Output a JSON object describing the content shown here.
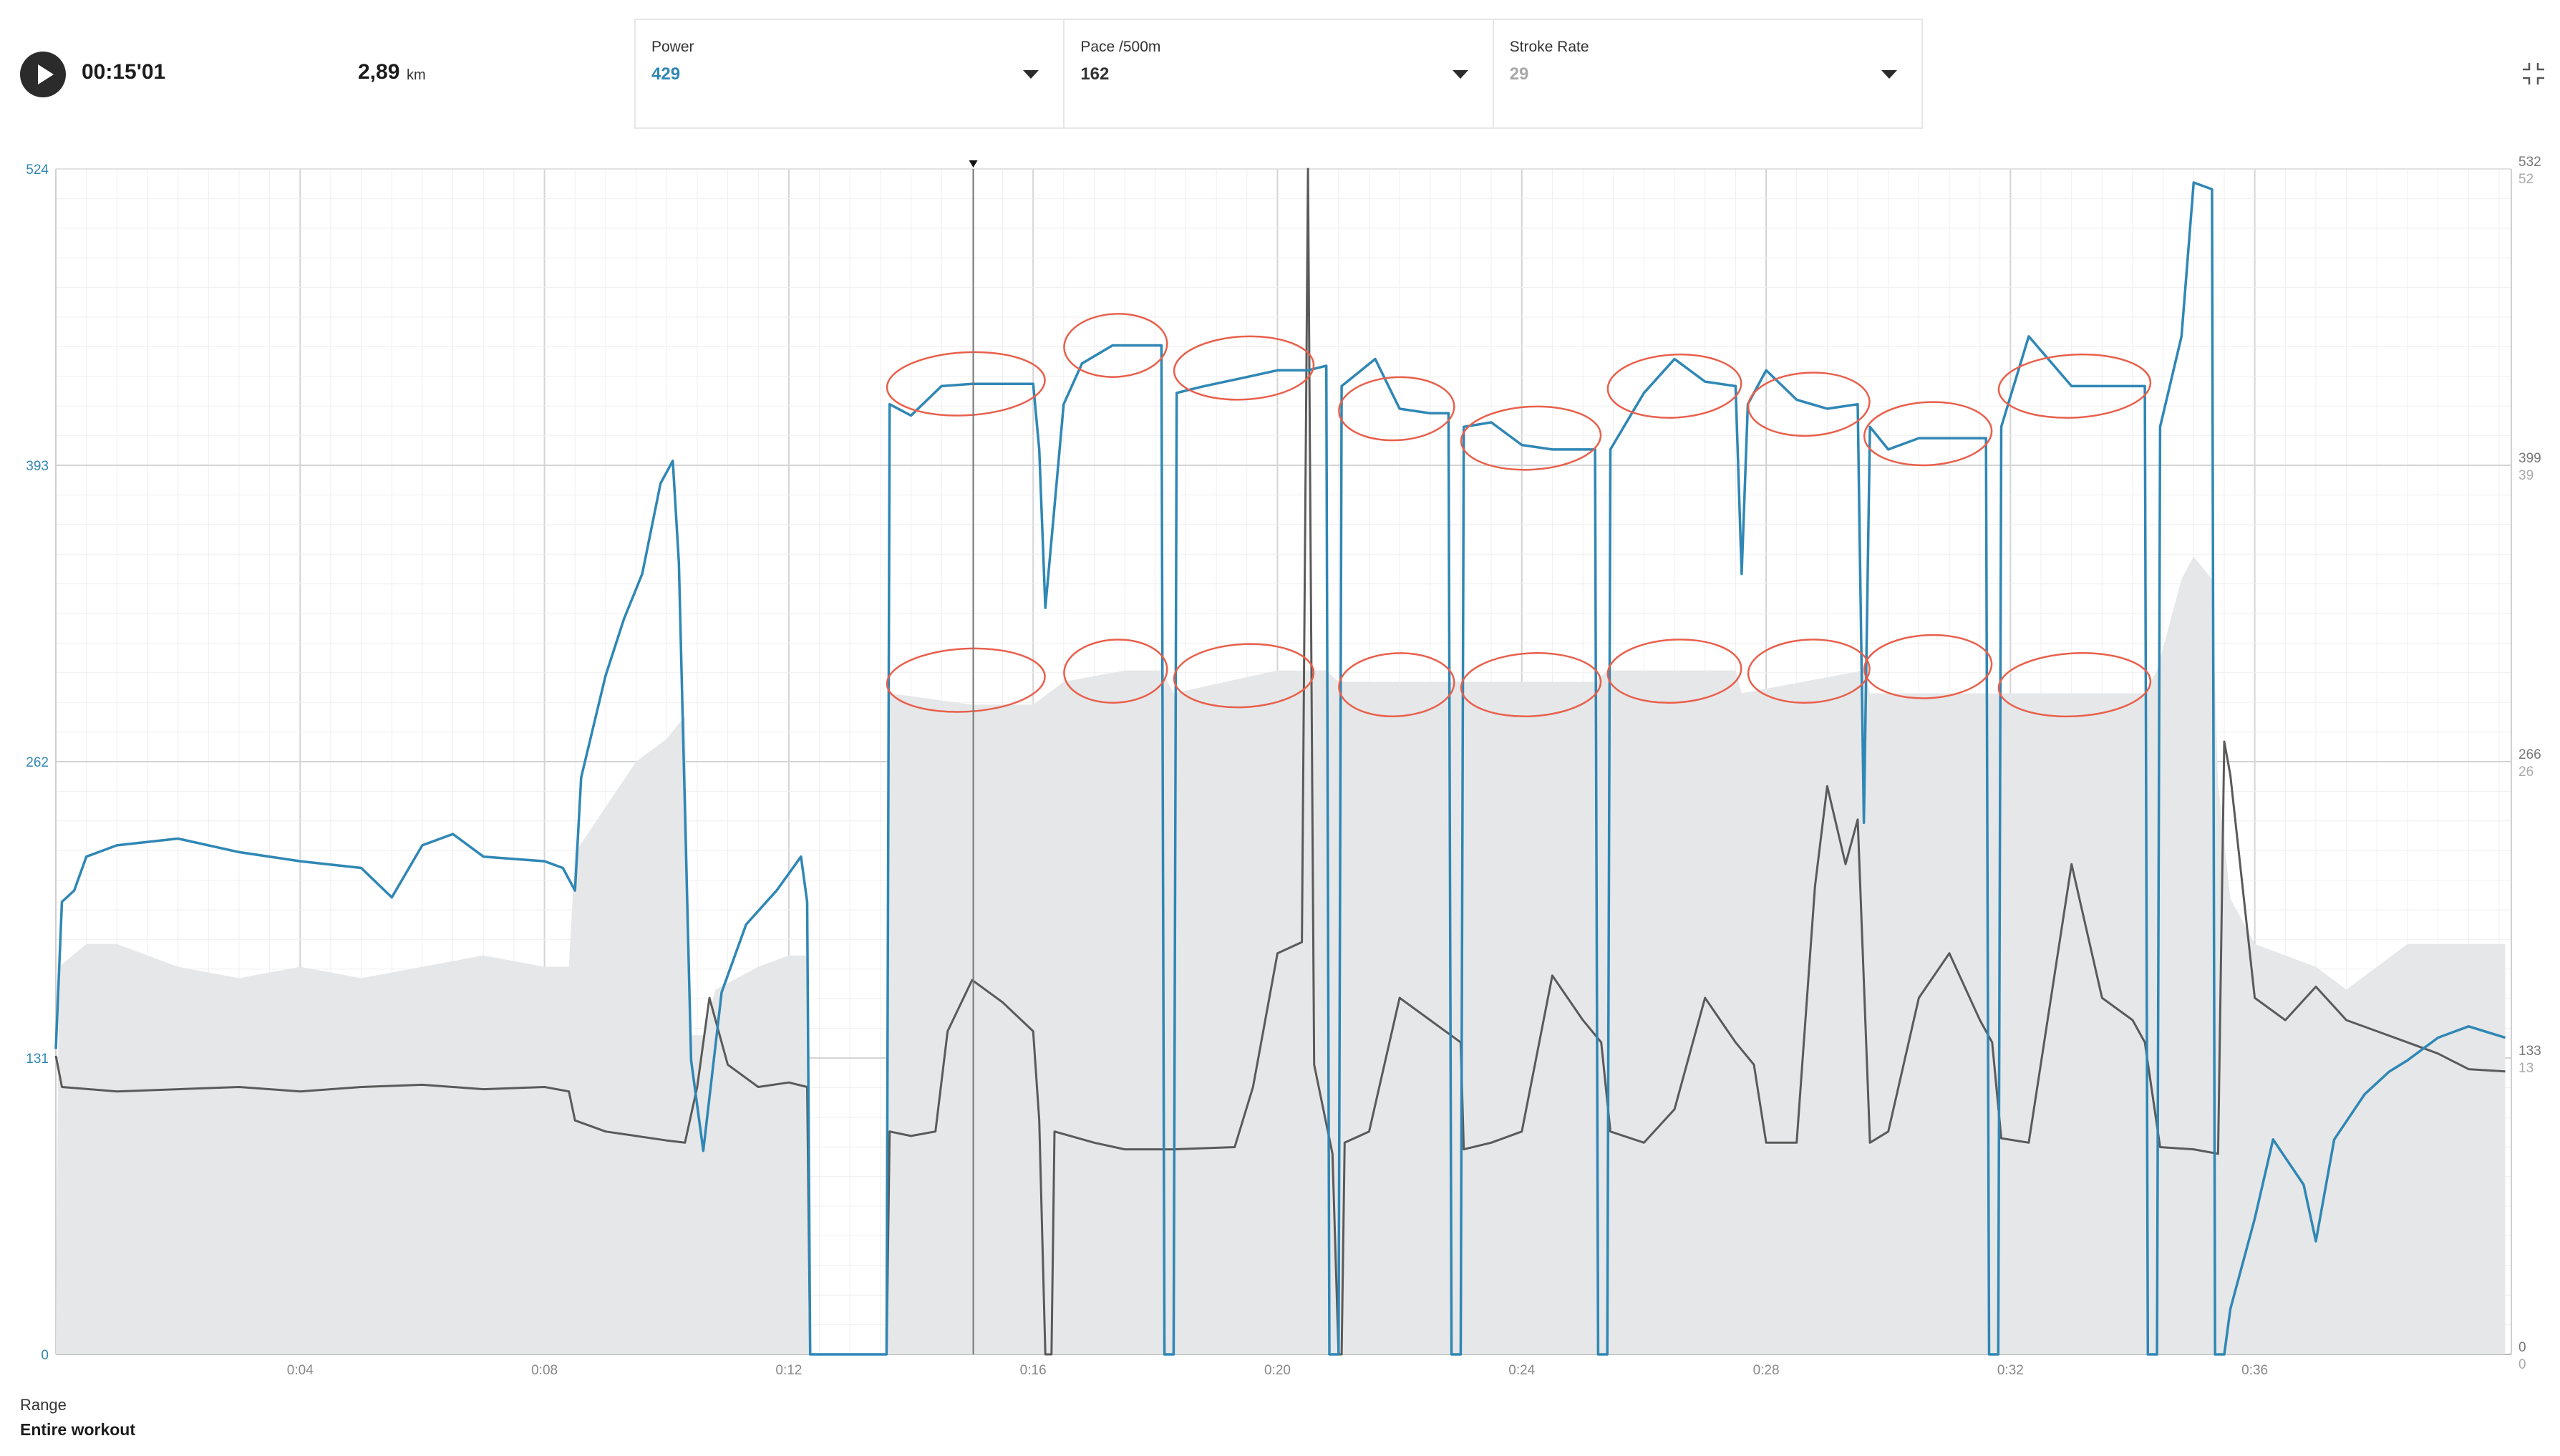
{
  "header": {
    "elapsed_time": "00:15'01",
    "distance_value": "2,89",
    "distance_unit": "km"
  },
  "selectors": [
    {
      "label": "Power",
      "value": "429",
      "color": "#2f87b5"
    },
    {
      "label": "Pace /500m",
      "value": "162",
      "color": "#333333"
    },
    {
      "label": "Stroke Rate",
      "value": "29",
      "color": "#a8a8a8"
    }
  ],
  "range": {
    "label": "Range",
    "value": "Entire workout"
  },
  "chart_data": {
    "type": "line",
    "x_unit": "minutes",
    "x_range": [
      0,
      40.2
    ],
    "x_ticks": [
      {
        "t": 4,
        "label": "0:04"
      },
      {
        "t": 8,
        "label": "0:08"
      },
      {
        "t": 12,
        "label": "0:12"
      },
      {
        "t": 16,
        "label": "0:16"
      },
      {
        "t": 20,
        "label": "0:20"
      },
      {
        "t": 24,
        "label": "0:24"
      },
      {
        "t": 28,
        "label": "0:28"
      },
      {
        "t": 32,
        "label": "0:32"
      },
      {
        "t": 36,
        "label": "0:36"
      }
    ],
    "left_axis": {
      "name": "Power",
      "range": [
        0,
        524
      ],
      "ticks": [
        "0",
        "131",
        "262",
        "393",
        "524"
      ],
      "color": "#2f87b5"
    },
    "right_axis_pace": {
      "name": "Pace /500m",
      "range": [
        0,
        532
      ],
      "ticks": [
        "0",
        "133",
        "266",
        "399",
        "532"
      ],
      "color": "#777777"
    },
    "right_axis_rate": {
      "name": "Stroke Rate",
      "range": [
        0,
        52
      ],
      "ticks": [
        "0",
        "13",
        "26",
        "39",
        "52"
      ],
      "color": "#aaaaaa"
    },
    "cursor_time": 15.02,
    "series": [
      {
        "name": "Power",
        "axis": "left",
        "color": "#2f87b5",
        "kind": "line",
        "points": [
          [
            0,
            135
          ],
          [
            0.1,
            200
          ],
          [
            0.3,
            205
          ],
          [
            0.5,
            220
          ],
          [
            1,
            225
          ],
          [
            2,
            228
          ],
          [
            3,
            222
          ],
          [
            4,
            218
          ],
          [
            5,
            215
          ],
          [
            5.5,
            202
          ],
          [
            6,
            225
          ],
          [
            6.5,
            230
          ],
          [
            7,
            220
          ],
          [
            8,
            218
          ],
          [
            8.3,
            215
          ],
          [
            8.5,
            205
          ],
          [
            8.6,
            255
          ],
          [
            9,
            300
          ],
          [
            9.3,
            325
          ],
          [
            9.6,
            345
          ],
          [
            9.9,
            385
          ],
          [
            10.1,
            395
          ],
          [
            10.2,
            350
          ],
          [
            10.4,
            130
          ],
          [
            10.6,
            90
          ],
          [
            10.9,
            160
          ],
          [
            11.3,
            190
          ],
          [
            11.8,
            205
          ],
          [
            12.2,
            220
          ],
          [
            12.3,
            200
          ],
          [
            12.35,
            0
          ],
          [
            13.6,
            0
          ],
          [
            13.65,
            420
          ],
          [
            14,
            415
          ],
          [
            14.5,
            428
          ],
          [
            15,
            429
          ],
          [
            15.5,
            429
          ],
          [
            16,
            429
          ],
          [
            16.1,
            400
          ],
          [
            16.2,
            330
          ],
          [
            16.3,
            360
          ],
          [
            16.5,
            420
          ],
          [
            16.8,
            438
          ],
          [
            17.3,
            446
          ],
          [
            17.8,
            446
          ],
          [
            18.1,
            446
          ],
          [
            18.15,
            0
          ],
          [
            18.3,
            0
          ],
          [
            18.35,
            425
          ],
          [
            18.8,
            428
          ],
          [
            19.5,
            432
          ],
          [
            20,
            435
          ],
          [
            20.5,
            435
          ],
          [
            20.8,
            437
          ],
          [
            20.85,
            0
          ],
          [
            21,
            0
          ],
          [
            21.05,
            428
          ],
          [
            21.6,
            440
          ],
          [
            22,
            418
          ],
          [
            22.5,
            416
          ],
          [
            22.8,
            416
          ],
          [
            22.85,
            0
          ],
          [
            23,
            0
          ],
          [
            23.05,
            410
          ],
          [
            23.5,
            412
          ],
          [
            24,
            402
          ],
          [
            24.5,
            400
          ],
          [
            25.2,
            400
          ],
          [
            25.25,
            0
          ],
          [
            25.4,
            0
          ],
          [
            25.45,
            400
          ],
          [
            26,
            425
          ],
          [
            26.5,
            440
          ],
          [
            27,
            430
          ],
          [
            27.5,
            428
          ],
          [
            27.6,
            345
          ],
          [
            27.7,
            420
          ],
          [
            28,
            435
          ],
          [
            28.5,
            422
          ],
          [
            29,
            418
          ],
          [
            29.5,
            420
          ],
          [
            29.6,
            235
          ],
          [
            29.7,
            410
          ],
          [
            30,
            400
          ],
          [
            30.5,
            405
          ],
          [
            31,
            405
          ],
          [
            31.6,
            405
          ],
          [
            31.65,
            0
          ],
          [
            31.8,
            0
          ],
          [
            31.85,
            410
          ],
          [
            32.3,
            450
          ],
          [
            33,
            428
          ],
          [
            33.5,
            428
          ],
          [
            34.2,
            428
          ],
          [
            34.25,
            0
          ],
          [
            34.4,
            0
          ],
          [
            34.45,
            410
          ],
          [
            34.8,
            450
          ],
          [
            35,
            518
          ],
          [
            35.3,
            515
          ],
          [
            35.35,
            0
          ],
          [
            35.5,
            0
          ],
          [
            35.6,
            20
          ],
          [
            36,
            60
          ],
          [
            36.3,
            95
          ],
          [
            36.8,
            75
          ],
          [
            37,
            50
          ],
          [
            37.3,
            95
          ],
          [
            37.8,
            115
          ],
          [
            38.2,
            125
          ],
          [
            38.5,
            130
          ],
          [
            39,
            140
          ],
          [
            39.5,
            145
          ],
          [
            40.1,
            140
          ]
        ]
      },
      {
        "name": "Pace /500m",
        "axis": "right_pace",
        "color": "#5a5a5a",
        "kind": "line",
        "points": [
          [
            0,
            134
          ],
          [
            0.1,
            120
          ],
          [
            1,
            118
          ],
          [
            2,
            119
          ],
          [
            3,
            120
          ],
          [
            4,
            118
          ],
          [
            5,
            120
          ],
          [
            6,
            121
          ],
          [
            7,
            119
          ],
          [
            8,
            120
          ],
          [
            8.4,
            118
          ],
          [
            8.5,
            105
          ],
          [
            9,
            100
          ],
          [
            9.5,
            98
          ],
          [
            10,
            96
          ],
          [
            10.3,
            95
          ],
          [
            10.5,
            120
          ],
          [
            10.7,
            160
          ],
          [
            11,
            130
          ],
          [
            11.5,
            120
          ],
          [
            12,
            122
          ],
          [
            12.3,
            120
          ],
          [
            12.35,
            0
          ],
          [
            13.6,
            0
          ],
          [
            13.65,
            100
          ],
          [
            14,
            98
          ],
          [
            14.4,
            100
          ],
          [
            14.6,
            145
          ],
          [
            15,
            168
          ],
          [
            15.5,
            158
          ],
          [
            16,
            145
          ],
          [
            16.1,
            105
          ],
          [
            16.2,
            0
          ],
          [
            16.3,
            0
          ],
          [
            16.35,
            100
          ],
          [
            17,
            95
          ],
          [
            17.5,
            92
          ],
          [
            18.1,
            92
          ],
          [
            18.3,
            92
          ],
          [
            19.3,
            93
          ],
          [
            19.6,
            120
          ],
          [
            20,
            180
          ],
          [
            20.4,
            185
          ],
          [
            20.5,
            532
          ],
          [
            20.6,
            130
          ],
          [
            20.9,
            90
          ],
          [
            21,
            0
          ],
          [
            21.05,
            0
          ],
          [
            21.1,
            95
          ],
          [
            21.5,
            100
          ],
          [
            22,
            160
          ],
          [
            22.5,
            150
          ],
          [
            23,
            140
          ],
          [
            23.05,
            92
          ],
          [
            23.5,
            95
          ],
          [
            24,
            100
          ],
          [
            24.5,
            170
          ],
          [
            25,
            150
          ],
          [
            25.3,
            140
          ],
          [
            25.45,
            100
          ],
          [
            26,
            95
          ],
          [
            26.5,
            110
          ],
          [
            27,
            160
          ],
          [
            27.5,
            140
          ],
          [
            27.8,
            130
          ],
          [
            28,
            95
          ],
          [
            28.5,
            95
          ],
          [
            28.8,
            210
          ],
          [
            29,
            255
          ],
          [
            29.3,
            220
          ],
          [
            29.5,
            240
          ],
          [
            29.7,
            95
          ],
          [
            30,
            100
          ],
          [
            30.5,
            160
          ],
          [
            31,
            180
          ],
          [
            31.5,
            150
          ],
          [
            31.7,
            140
          ],
          [
            31.85,
            97
          ],
          [
            32.3,
            95
          ],
          [
            33,
            220
          ],
          [
            33.5,
            160
          ],
          [
            34,
            150
          ],
          [
            34.2,
            140
          ],
          [
            34.45,
            93
          ],
          [
            35,
            92
          ],
          [
            35.4,
            90
          ],
          [
            35.5,
            275
          ],
          [
            35.6,
            260
          ],
          [
            36,
            160
          ],
          [
            36.5,
            150
          ],
          [
            37,
            165
          ],
          [
            37.5,
            150
          ],
          [
            38,
            145
          ],
          [
            38.5,
            140
          ],
          [
            39,
            135
          ],
          [
            39.5,
            128
          ],
          [
            40.1,
            127
          ]
        ]
      },
      {
        "name": "Stroke Rate",
        "axis": "right_rate",
        "color": "#e6e7e8",
        "kind": "area",
        "points": [
          [
            0,
            0
          ],
          [
            0.05,
            17
          ],
          [
            0.5,
            18
          ],
          [
            1,
            18
          ],
          [
            2,
            17
          ],
          [
            3,
            16.5
          ],
          [
            4,
            17
          ],
          [
            5,
            16.5
          ],
          [
            6,
            17
          ],
          [
            7,
            17.5
          ],
          [
            8,
            17
          ],
          [
            8.4,
            17
          ],
          [
            8.5,
            22
          ],
          [
            9,
            24
          ],
          [
            9.5,
            26
          ],
          [
            10,
            27
          ],
          [
            10.3,
            28
          ],
          [
            10.4,
            14
          ],
          [
            10.6,
            14
          ],
          [
            10.8,
            16
          ],
          [
            11.5,
            17
          ],
          [
            12,
            17.5
          ],
          [
            12.3,
            17.5
          ],
          [
            12.35,
            0
          ],
          [
            13.6,
            0
          ],
          [
            13.65,
            29
          ],
          [
            15,
            28.5
          ],
          [
            16,
            28.5
          ],
          [
            16.5,
            29.5
          ],
          [
            17.5,
            30
          ],
          [
            18.1,
            30
          ],
          [
            18.3,
            29
          ],
          [
            20,
            30
          ],
          [
            20.8,
            30
          ],
          [
            21,
            29.5
          ],
          [
            22.8,
            29.5
          ],
          [
            23,
            29.5
          ],
          [
            25.2,
            29.5
          ],
          [
            25.4,
            30
          ],
          [
            27.5,
            30
          ],
          [
            27.6,
            29
          ],
          [
            29.6,
            30
          ],
          [
            29.7,
            29
          ],
          [
            31.6,
            29
          ],
          [
            31.8,
            29
          ],
          [
            34.2,
            29
          ],
          [
            34.4,
            30
          ],
          [
            34.8,
            34
          ],
          [
            35,
            35
          ],
          [
            35.3,
            34
          ],
          [
            35.4,
            25
          ],
          [
            35.6,
            20
          ],
          [
            36,
            18
          ],
          [
            37,
            17
          ],
          [
            37.5,
            16
          ],
          [
            38,
            17
          ],
          [
            38.5,
            18
          ],
          [
            39,
            18
          ],
          [
            39.5,
            18
          ],
          [
            40.1,
            18
          ],
          [
            40.1,
            0
          ]
        ]
      }
    ]
  }
}
